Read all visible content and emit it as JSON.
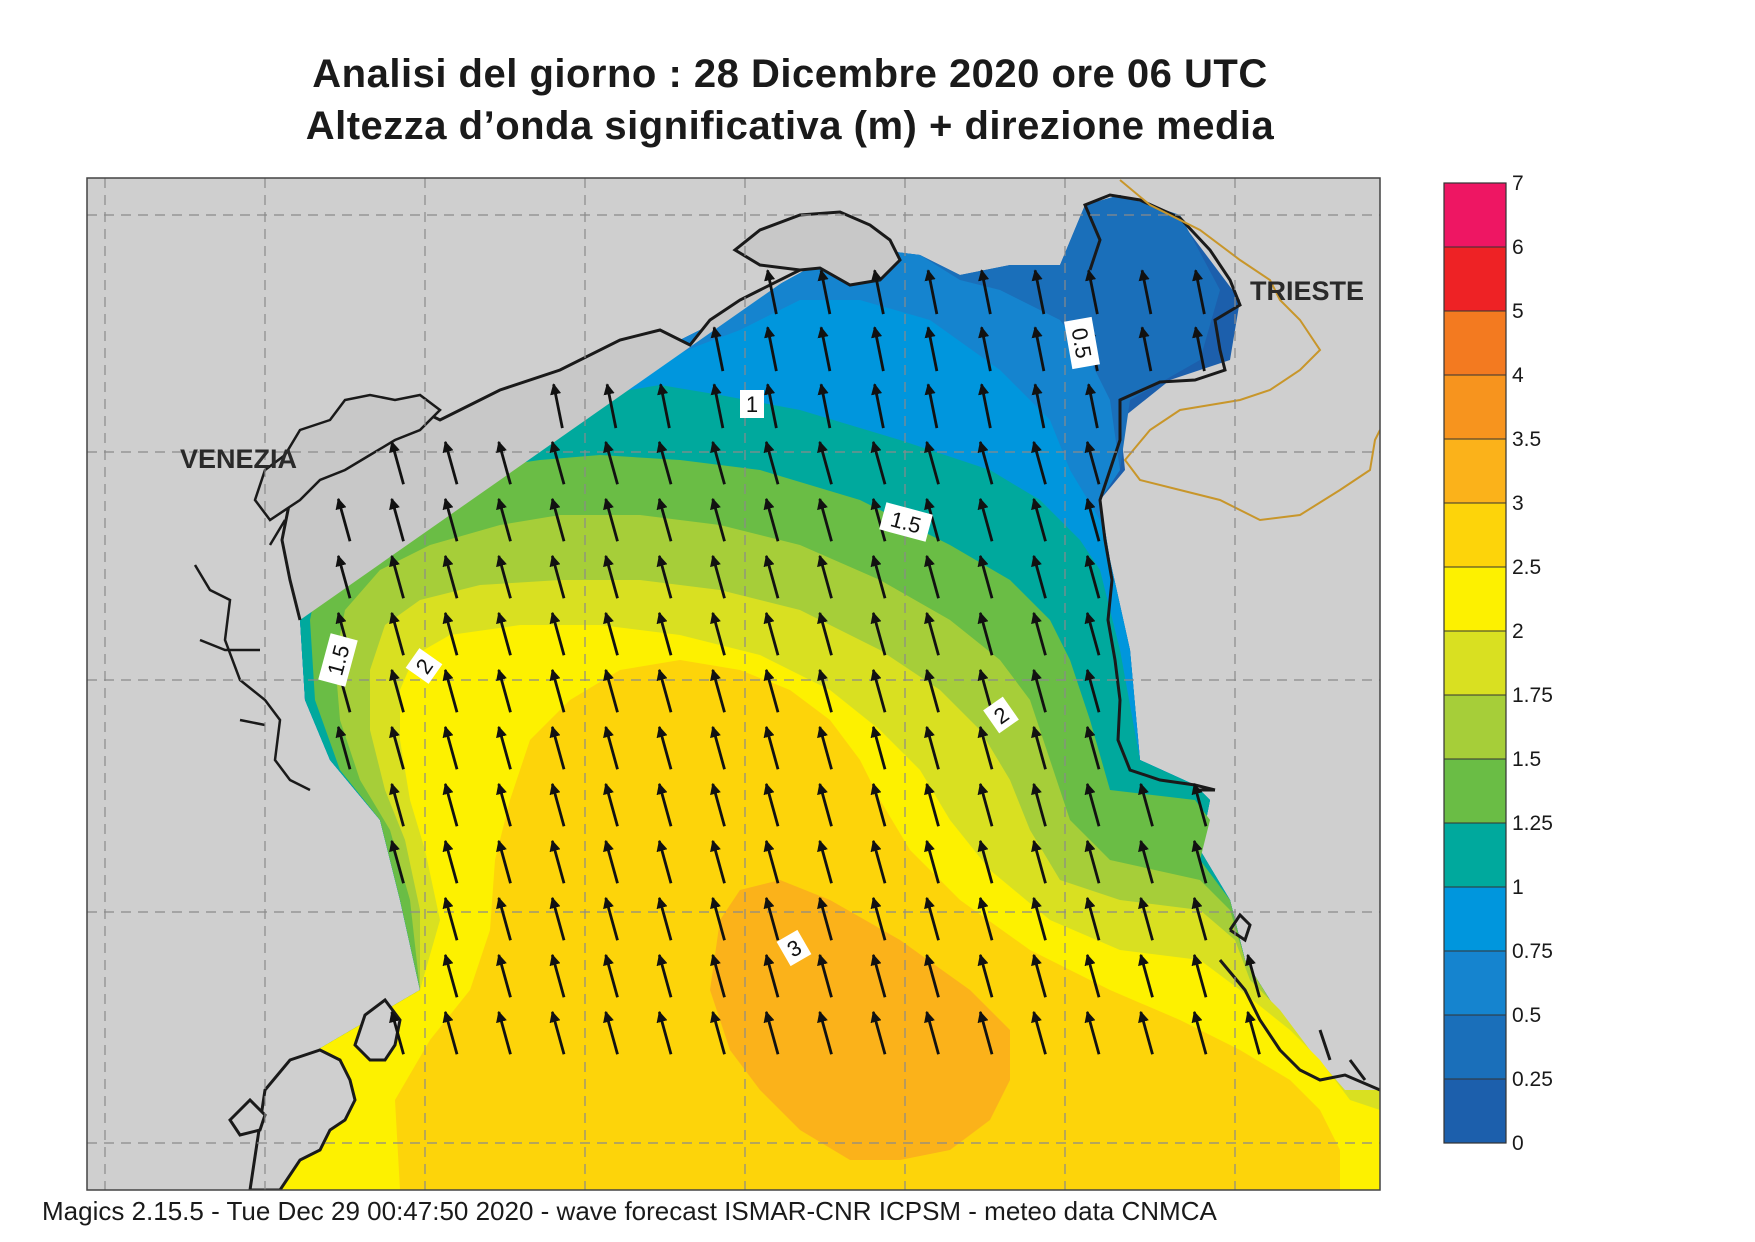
{
  "title_line1": "Analisi del giorno :  28 Dicembre  2020   ore 06 UTC",
  "title_line2": "Altezza d’onda significativa (m) + direzione media",
  "place_labels": {
    "venezia": "VENEZIA",
    "trieste": "TRIESTE"
  },
  "contour_labels": [
    "0.5",
    "1",
    "1.5",
    "1.5",
    "2",
    "2",
    "3"
  ],
  "legend": {
    "ticks": [
      "7",
      "6",
      "5",
      "4",
      "3.5",
      "3",
      "2.5",
      "2",
      "1.75",
      "1.5",
      "1.25",
      "1",
      "0.75",
      "0.5",
      "0.25",
      "0"
    ],
    "colors": [
      "#ee1663",
      "#ee2225",
      "#f37a20",
      "#f7941e",
      "#fbb21a",
      "#fdd40a",
      "#fdf100",
      "#d9e021",
      "#a6ce39",
      "#6abd45",
      "#00a99d",
      "#0096dd",
      "#1584cf",
      "#1a6fba",
      "#1c5fac"
    ]
  },
  "footer": "Magics 2.15.5 - Tue Dec 29 00:47:50 2020 - wave forecast  ISMAR-CNR  ICPSM - meteo data   CNMCA"
}
